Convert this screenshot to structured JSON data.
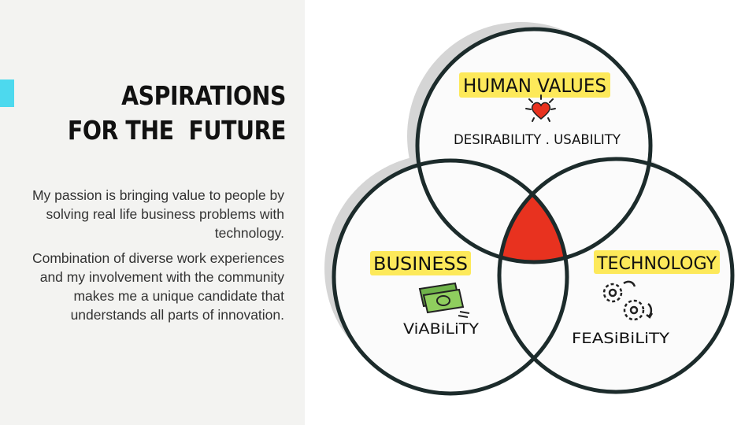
{
  "slide": {
    "title_line1": "ASPIRATIONS",
    "title_line2": "FOR THE  FUTURE",
    "paragraph1": "My passion is bringing value to people by solving real life business problems with technology.",
    "paragraph2": "Combination of diverse work experiences and my involvement with the community makes me a unique candidate that understands all parts of innovation.",
    "accent_color": "#4dd9ee"
  },
  "venn": {
    "human": {
      "label": "HUMAN VALUES",
      "sublabel": "DESIRABILITY . USABILITY",
      "icon": "heart-icon"
    },
    "business": {
      "label": "BUSINESS",
      "sublabel": "ViABiLiTY",
      "icon": "money-icon"
    },
    "technology": {
      "label": "TECHNOLOGY",
      "sublabel": "FEASiBiLiTY",
      "icon": "gears-icon"
    },
    "highlight_color": "#fde95a",
    "intersection_color": "#e8321f"
  }
}
